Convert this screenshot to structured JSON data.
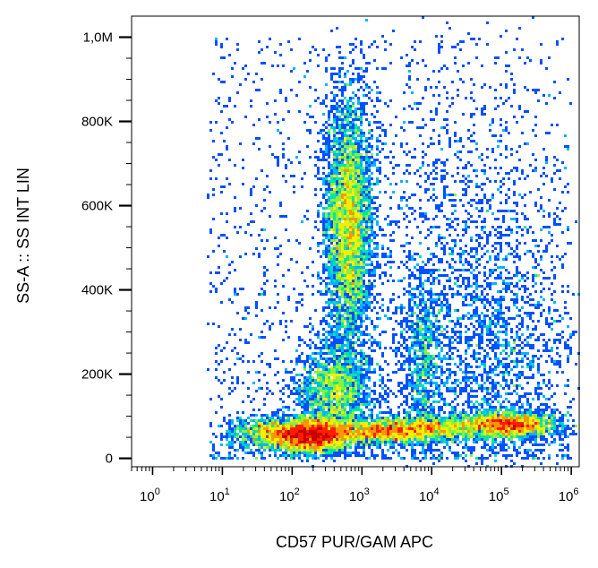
{
  "chart_data": {
    "type": "scatter",
    "subtype": "flow-cytometry-density-dot-plot",
    "title": "",
    "xlabel": "CD57 PUR/GAM APC",
    "ylabel": "SS-A :: SS INT LIN",
    "x_scale": "log",
    "y_scale": "linear",
    "xlim": [
      0.5,
      1300000
    ],
    "ylim": [
      -20000,
      1050000
    ],
    "x_ticks": [
      {
        "value": 1,
        "base": "10",
        "exp": "0"
      },
      {
        "value": 10,
        "base": "10",
        "exp": "1"
      },
      {
        "value": 100,
        "base": "10",
        "exp": "2"
      },
      {
        "value": 1000,
        "base": "10",
        "exp": "3"
      },
      {
        "value": 10000,
        "base": "10",
        "exp": "4"
      },
      {
        "value": 100000,
        "base": "10",
        "exp": "5"
      },
      {
        "value": 1000000,
        "base": "10",
        "exp": "6"
      }
    ],
    "y_ticks": [
      {
        "value": 0,
        "label": "0"
      },
      {
        "value": 200000,
        "label": "200K"
      },
      {
        "value": 400000,
        "label": "400K"
      },
      {
        "value": 600000,
        "label": "600K"
      },
      {
        "value": 800000,
        "label": "800K"
      },
      {
        "value": 1000000,
        "label": "1,0M"
      }
    ],
    "grid": false,
    "legend": "none",
    "colormap": [
      "#1a00c8",
      "#0050ff",
      "#00b4ff",
      "#00e6a0",
      "#8cf03c",
      "#f0f000",
      "#ff9600",
      "#ff1e00",
      "#c80000"
    ],
    "populations": [
      {
        "x_center": 180,
        "y_center": 55000,
        "x_spread_decades": 0.3,
        "y_spread": 20000,
        "weight": 3500
      },
      {
        "x_center": 650,
        "y_center": 560000,
        "x_spread_decades": 0.17,
        "y_spread": 145000,
        "weight": 4500
      },
      {
        "x_center": 400,
        "y_center": 160000,
        "x_spread_decades": 0.26,
        "y_spread": 55000,
        "weight": 1800
      },
      {
        "x_center": 1800,
        "y_center": 65000,
        "x_spread_decades": 0.35,
        "y_spread": 15000,
        "weight": 1500
      },
      {
        "x_center": 9000,
        "y_center": 70000,
        "x_spread_decades": 0.35,
        "y_spread": 15000,
        "weight": 1100
      },
      {
        "x_center": 120000,
        "y_center": 80000,
        "x_spread_decades": 0.35,
        "y_spread": 15000,
        "weight": 2200
      },
      {
        "x_center": 7500,
        "y_center": 230000,
        "x_spread_decades": 0.15,
        "y_spread": 110000,
        "weight": 800
      },
      {
        "x_center": 100000,
        "y_center": 250000,
        "x_spread_decades": 0.5,
        "y_spread": 150000,
        "weight": 900
      },
      {
        "x_center": 40,
        "y_center": 60000,
        "x_spread_decades": 0.25,
        "y_spread": 18000,
        "weight": 700
      },
      {
        "x_center": 30000,
        "y_center": 400000,
        "x_spread_decades": 0.7,
        "y_spread": 260000,
        "weight": 1300
      }
    ]
  }
}
